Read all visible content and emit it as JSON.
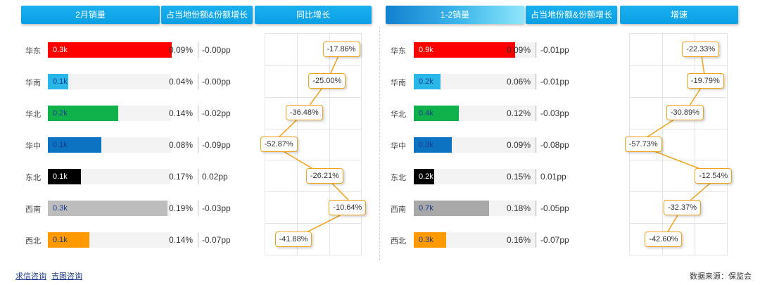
{
  "headers": {
    "left_sales": "2月销量",
    "left_share": "占当地份额&份额增长",
    "left_growth": "同比增长",
    "right_sales": "1-2销量",
    "right_share": "占当地份额&份额增长",
    "right_growth": "增速"
  },
  "footer": {
    "link1": "求信咨询",
    "link2": "吉图咨询",
    "source": "数据来源：保监会"
  },
  "colors": {
    "header": "#0ea3e6",
    "line": "#f0a21a",
    "regions": [
      "#ff0000",
      "#29b6e9",
      "#0fb14a",
      "#0b73c1",
      "#000000",
      "#bdbdbd",
      "#ff9900"
    ],
    "regions_right": [
      "#ff0000",
      "#29b6e9",
      "#0fb14a",
      "#0b73c1",
      "#000000",
      "#a8a8a8",
      "#ff9900"
    ]
  },
  "chart_data": [
    {
      "type": "bar",
      "title": "2月销量",
      "categories": [
        "华东",
        "华南",
        "华北",
        "华中",
        "东北",
        "西南",
        "西北"
      ],
      "bar_labels": [
        "0.3k",
        "0.1k",
        "0.2k",
        "0.1k",
        "0.1k",
        "0.3k",
        "0.1k"
      ],
      "values": [
        0.3,
        0.05,
        0.17,
        0.13,
        0.08,
        0.29,
        0.1
      ],
      "xlim": [
        0,
        0.3
      ],
      "share": [
        "0.09%",
        "0.04%",
        "0.14%",
        "0.08%",
        "0.17%",
        "0.19%",
        "0.14%"
      ],
      "share_change": [
        "-0.00pp",
        "-0.00pp",
        "-0.02pp",
        "-0.09pp",
        "0.02pp",
        "-0.03pp",
        "-0.07pp"
      ]
    },
    {
      "type": "line",
      "title": "同比增长",
      "categories": [
        "华东",
        "华南",
        "华北",
        "华中",
        "东北",
        "西南",
        "西北"
      ],
      "labels": [
        "-17.86%",
        "-25.00%",
        "-36.48%",
        "-52.87%",
        "-26.21%",
        "-10.64%",
        "-41.88%"
      ],
      "values": [
        -17.86,
        -25.0,
        -36.48,
        -52.87,
        -26.21,
        -10.64,
        -41.88
      ],
      "xlim": [
        -56,
        -8
      ]
    },
    {
      "type": "bar",
      "title": "1-2销量",
      "categories": [
        "华东",
        "华南",
        "华北",
        "华中",
        "东北",
        "西南",
        "西北"
      ],
      "bar_labels": [
        "0.9k",
        "0.2k",
        "0.4k",
        "0.3k",
        "0.2k",
        "0.7k",
        "0.3k"
      ],
      "values": [
        0.9,
        0.24,
        0.4,
        0.34,
        0.18,
        0.67,
        0.29
      ],
      "xlim": [
        0,
        1.0
      ],
      "share": [
        "0.09%",
        "0.06%",
        "0.12%",
        "0.09%",
        "0.15%",
        "0.18%",
        "0.16%"
      ],
      "share_change": [
        "-0.01pp",
        "-0.01pp",
        "-0.03pp",
        "-0.08pp",
        "0.01pp",
        "-0.05pp",
        "-0.07pp"
      ]
    },
    {
      "type": "line",
      "title": "增速",
      "categories": [
        "华东",
        "华南",
        "华北",
        "华中",
        "东北",
        "西南",
        "西北"
      ],
      "labels": [
        "-22.33%",
        "-19.79%",
        "-30.89%",
        "-57.73%",
        "-12.54%",
        "-32.37%",
        "-42.60%"
      ],
      "values": [
        -22.33,
        -19.79,
        -30.89,
        -57.73,
        -12.54,
        -32.37,
        -42.6
      ],
      "xlim": [
        -61,
        -8
      ]
    }
  ]
}
